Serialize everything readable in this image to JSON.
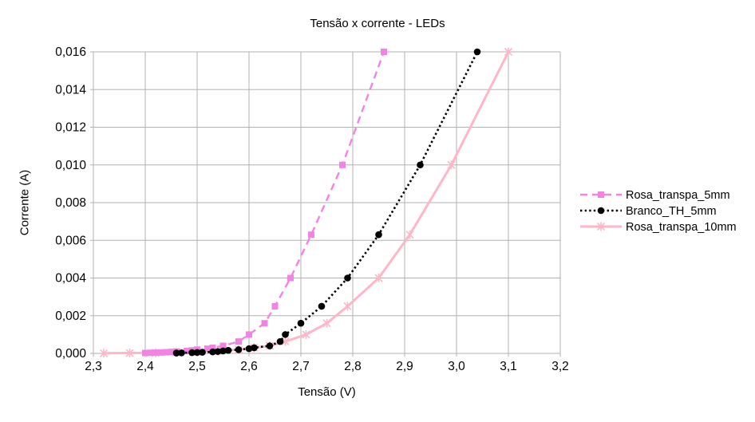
{
  "chart_data": {
    "type": "line",
    "title": "Tensão x corrente - LEDs",
    "xlabel": "Tensão (V)",
    "ylabel": "Corrente (A)",
    "xlim": [
      2.3,
      3.2
    ],
    "ylim": [
      0,
      0.016
    ],
    "x_tick_labels": [
      "2,3",
      "2,4",
      "2,5",
      "2,6",
      "2,7",
      "2,8",
      "2,9",
      "3,0",
      "3,1",
      "3,2"
    ],
    "y_tick_labels": [
      "0,000",
      "0,002",
      "0,004",
      "0,006",
      "0,008",
      "0,010",
      "0,012",
      "0,014",
      "0,016"
    ],
    "grid": true,
    "legend_position": "right",
    "colors": {
      "background": "#ffffff",
      "grid": "#b2b2b2",
      "axis": "#b2b2b2",
      "text": "#000000"
    },
    "series": [
      {
        "name": "Rosa_transpa_5mm",
        "color": "#f383e3",
        "line_style": "dashed",
        "marker": "square",
        "points": [
          [
            2.4,
            2e-05
          ],
          [
            2.41,
            3e-05
          ],
          [
            2.42,
            4e-05
          ],
          [
            2.43,
            5e-05
          ],
          [
            2.44,
            6e-05
          ],
          [
            2.45,
            8e-05
          ],
          [
            2.46,
            0.0001
          ],
          [
            2.48,
            0.00013
          ],
          [
            2.49,
            0.00016
          ],
          [
            2.5,
            0.0002
          ],
          [
            2.52,
            0.00025
          ],
          [
            2.53,
            0.0003
          ],
          [
            2.55,
            0.0004
          ],
          [
            2.58,
            0.00063
          ],
          [
            2.6,
            0.001
          ],
          [
            2.63,
            0.0016
          ],
          [
            2.65,
            0.0025
          ],
          [
            2.68,
            0.004
          ],
          [
            2.72,
            0.0063
          ],
          [
            2.78,
            0.01
          ],
          [
            2.86,
            0.016
          ]
        ]
      },
      {
        "name": "Branco_TH_5mm",
        "color": "#000000",
        "line_style": "dotted",
        "marker": "circle",
        "points": [
          [
            2.46,
            2e-05
          ],
          [
            2.47,
            3e-05
          ],
          [
            2.49,
            4e-05
          ],
          [
            2.5,
            5e-05
          ],
          [
            2.51,
            6e-05
          ],
          [
            2.53,
            8e-05
          ],
          [
            2.54,
            0.0001
          ],
          [
            2.55,
            0.00013
          ],
          [
            2.56,
            0.00016
          ],
          [
            2.58,
            0.0002
          ],
          [
            2.6,
            0.00025
          ],
          [
            2.61,
            0.0003
          ],
          [
            2.64,
            0.0004
          ],
          [
            2.66,
            0.00063
          ],
          [
            2.67,
            0.001
          ],
          [
            2.7,
            0.0016
          ],
          [
            2.74,
            0.0025
          ],
          [
            2.79,
            0.004
          ],
          [
            2.85,
            0.0063
          ],
          [
            2.93,
            0.01
          ],
          [
            3.04,
            0.016
          ]
        ]
      },
      {
        "name": "Rosa_transpa_10mm",
        "color": "#ffb6c8",
        "line_style": "solid",
        "marker": "x",
        "points": [
          [
            2.32,
            1e-05
          ],
          [
            2.37,
            2e-05
          ],
          [
            2.42,
            3e-05
          ],
          [
            2.46,
            5e-05
          ],
          [
            2.5,
            8e-05
          ],
          [
            2.54,
            0.00013
          ],
          [
            2.58,
            0.0002
          ],
          [
            2.61,
            0.0003
          ],
          [
            2.64,
            0.0004
          ],
          [
            2.67,
            0.00063
          ],
          [
            2.71,
            0.001
          ],
          [
            2.75,
            0.0016
          ],
          [
            2.79,
            0.0025
          ],
          [
            2.85,
            0.004
          ],
          [
            2.91,
            0.0063
          ],
          [
            2.99,
            0.01
          ],
          [
            3.1,
            0.016
          ]
        ]
      }
    ],
    "draw_order": [
      2,
      0,
      1
    ]
  }
}
